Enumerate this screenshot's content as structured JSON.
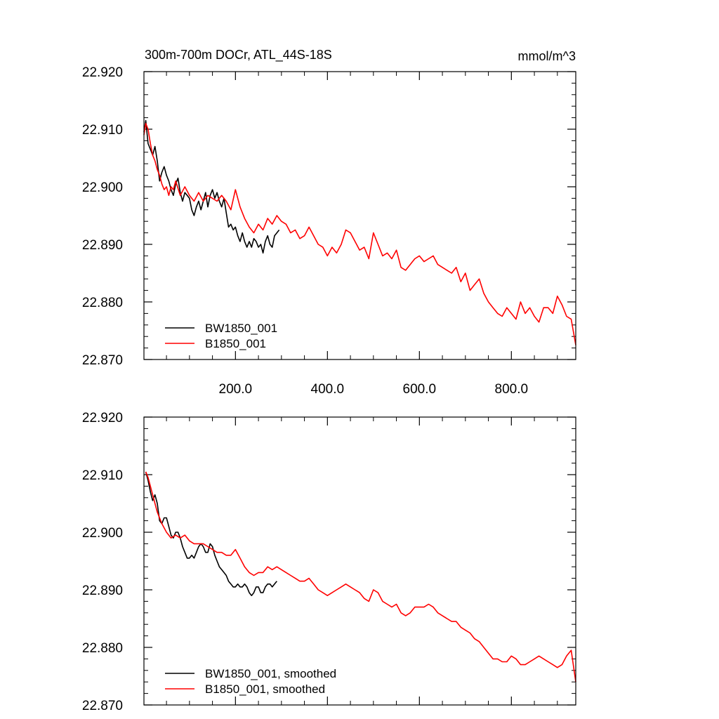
{
  "chart_data": [
    {
      "type": "line",
      "title": "300m-700m DOCr, ATL_44S-18S",
      "units": "mmol/m^3",
      "xlim": [
        1,
        940
      ],
      "ylim": [
        22.87,
        22.92
      ],
      "xticks": [
        200.0,
        400.0,
        600.0,
        800.0
      ],
      "xtick_labels": [
        "200.0",
        "400.0",
        "600.0",
        "800.0"
      ],
      "yticks": [
        22.87,
        22.88,
        22.89,
        22.9,
        22.91,
        22.92
      ],
      "ytick_labels": [
        "22.870",
        "22.880",
        "22.890",
        "22.900",
        "22.910",
        "22.920"
      ],
      "legend_position": "bottom-left",
      "series": [
        {
          "name": "BW1850_001",
          "color": "#000000",
          "x": [
            1,
            5,
            10,
            15,
            20,
            25,
            30,
            35,
            40,
            45,
            50,
            55,
            60,
            65,
            70,
            75,
            80,
            85,
            90,
            95,
            100,
            105,
            110,
            115,
            120,
            125,
            130,
            135,
            140,
            145,
            150,
            155,
            160,
            165,
            170,
            175,
            180,
            185,
            190,
            195,
            200,
            205,
            210,
            215,
            220,
            225,
            230,
            235,
            240,
            245,
            250,
            255,
            260,
            265,
            270,
            275,
            280,
            285,
            290,
            295
          ],
          "values": [
            22.9095,
            22.9115,
            22.9075,
            22.9065,
            22.9055,
            22.907,
            22.9045,
            22.901,
            22.9025,
            22.9035,
            22.902,
            22.901,
            22.8995,
            22.8985,
            22.9005,
            22.9015,
            22.899,
            22.8975,
            22.899,
            22.8985,
            22.898,
            22.896,
            22.895,
            22.8965,
            22.8975,
            22.896,
            22.8975,
            22.899,
            22.8965,
            22.8985,
            22.8995,
            22.898,
            22.899,
            22.8975,
            22.8965,
            22.898,
            22.8955,
            22.893,
            22.8935,
            22.8925,
            22.893,
            22.8915,
            22.8905,
            22.892,
            22.8905,
            22.8895,
            22.8905,
            22.8895,
            22.891,
            22.8905,
            22.8895,
            22.89,
            22.8885,
            22.8905,
            22.8915,
            22.89,
            22.8895,
            22.8915,
            22.892,
            22.8925
          ]
        },
        {
          "name": "B1850_001",
          "color": "#ff0000",
          "x": [
            1,
            5,
            10,
            15,
            20,
            25,
            30,
            35,
            40,
            45,
            50,
            55,
            60,
            65,
            70,
            80,
            90,
            100,
            110,
            120,
            130,
            140,
            150,
            160,
            170,
            180,
            190,
            200,
            210,
            220,
            230,
            240,
            250,
            260,
            270,
            280,
            290,
            300,
            310,
            320,
            330,
            340,
            350,
            360,
            370,
            380,
            390,
            400,
            410,
            420,
            430,
            440,
            450,
            460,
            470,
            480,
            490,
            500,
            510,
            520,
            530,
            540,
            550,
            560,
            570,
            580,
            590,
            600,
            610,
            620,
            630,
            640,
            650,
            660,
            670,
            680,
            690,
            700,
            710,
            720,
            730,
            740,
            750,
            760,
            770,
            780,
            790,
            800,
            810,
            820,
            830,
            840,
            850,
            860,
            870,
            880,
            890,
            900,
            910,
            920,
            930,
            940
          ],
          "values": [
            22.909,
            22.911,
            22.91,
            22.9075,
            22.9055,
            22.9045,
            22.903,
            22.902,
            22.9005,
            22.8995,
            22.9,
            22.8985,
            22.9,
            22.8995,
            22.901,
            22.8985,
            22.9,
            22.8985,
            22.8975,
            22.899,
            22.8975,
            22.8985,
            22.898,
            22.8975,
            22.8985,
            22.8975,
            22.896,
            22.8995,
            22.8965,
            22.8945,
            22.893,
            22.892,
            22.8935,
            22.8925,
            22.8945,
            22.8935,
            22.895,
            22.894,
            22.8935,
            22.892,
            22.8925,
            22.891,
            22.8915,
            22.893,
            22.8915,
            22.89,
            22.8895,
            22.888,
            22.8895,
            22.8885,
            22.89,
            22.8925,
            22.892,
            22.8905,
            22.889,
            22.8895,
            22.8875,
            22.892,
            22.89,
            22.888,
            22.8885,
            22.8875,
            22.889,
            22.886,
            22.8855,
            22.8865,
            22.8875,
            22.888,
            22.887,
            22.8875,
            22.888,
            22.8865,
            22.886,
            22.8855,
            22.885,
            22.886,
            22.8835,
            22.885,
            22.882,
            22.883,
            22.884,
            22.8815,
            22.88,
            22.879,
            22.878,
            22.8775,
            22.879,
            22.878,
            22.877,
            22.88,
            22.878,
            22.879,
            22.8775,
            22.8765,
            22.879,
            22.879,
            22.878,
            22.881,
            22.8795,
            22.8775,
            22.877,
            22.8725
          ]
        }
      ]
    },
    {
      "type": "line",
      "xlim": [
        1,
        940
      ],
      "ylim": [
        22.87,
        22.92
      ],
      "yticks": [
        22.87,
        22.88,
        22.89,
        22.9,
        22.91,
        22.92
      ],
      "ytick_labels": [
        "22.870",
        "22.880",
        "22.890",
        "22.900",
        "22.910",
        "22.920"
      ],
      "legend_position": "bottom-left",
      "series": [
        {
          "name": "BW1850_001, smoothed",
          "color": "#000000",
          "x": [
            5,
            10,
            15,
            20,
            25,
            30,
            35,
            40,
            45,
            50,
            55,
            60,
            65,
            70,
            75,
            80,
            85,
            90,
            95,
            100,
            105,
            110,
            115,
            120,
            125,
            130,
            135,
            140,
            145,
            150,
            155,
            160,
            165,
            170,
            175,
            180,
            185,
            190,
            195,
            200,
            205,
            210,
            215,
            220,
            225,
            230,
            235,
            240,
            245,
            250,
            255,
            260,
            265,
            270,
            275,
            280,
            285,
            290
          ],
          "values": [
            22.9105,
            22.909,
            22.907,
            22.9055,
            22.9065,
            22.905,
            22.902,
            22.9015,
            22.9025,
            22.9025,
            22.901,
            22.8995,
            22.899,
            22.9,
            22.9,
            22.899,
            22.8975,
            22.8965,
            22.8955,
            22.8955,
            22.896,
            22.8955,
            22.8965,
            22.8975,
            22.898,
            22.8975,
            22.8965,
            22.8965,
            22.898,
            22.8975,
            22.896,
            22.895,
            22.894,
            22.8935,
            22.893,
            22.8925,
            22.8915,
            22.891,
            22.8905,
            22.8905,
            22.891,
            22.8905,
            22.8905,
            22.891,
            22.8905,
            22.8895,
            22.889,
            22.8895,
            22.8905,
            22.8905,
            22.8895,
            22.8895,
            22.8905,
            22.891,
            22.891,
            22.8905,
            22.891,
            22.8915
          ]
        },
        {
          "name": "B1850_001, smoothed",
          "color": "#ff0000",
          "x": [
            5,
            10,
            15,
            20,
            25,
            30,
            40,
            50,
            60,
            70,
            80,
            90,
            100,
            110,
            120,
            130,
            140,
            150,
            160,
            170,
            180,
            190,
            200,
            210,
            220,
            230,
            240,
            250,
            260,
            270,
            280,
            290,
            300,
            310,
            320,
            330,
            340,
            350,
            360,
            370,
            380,
            390,
            400,
            410,
            420,
            430,
            440,
            450,
            460,
            470,
            480,
            490,
            500,
            510,
            520,
            530,
            540,
            550,
            560,
            570,
            580,
            590,
            600,
            610,
            620,
            630,
            640,
            650,
            660,
            670,
            680,
            690,
            700,
            710,
            720,
            730,
            740,
            750,
            760,
            770,
            780,
            790,
            800,
            810,
            820,
            830,
            840,
            850,
            860,
            870,
            880,
            890,
            900,
            910,
            920,
            930,
            940
          ],
          "values": [
            22.9105,
            22.9095,
            22.908,
            22.9065,
            22.905,
            22.9035,
            22.9015,
            22.9,
            22.899,
            22.8995,
            22.899,
            22.8995,
            22.8985,
            22.898,
            22.898,
            22.898,
            22.8975,
            22.897,
            22.8965,
            22.8965,
            22.896,
            22.896,
            22.897,
            22.8955,
            22.894,
            22.893,
            22.8925,
            22.893,
            22.893,
            22.894,
            22.8935,
            22.894,
            22.8935,
            22.893,
            22.8925,
            22.892,
            22.8915,
            22.8915,
            22.892,
            22.891,
            22.89,
            22.8895,
            22.889,
            22.8895,
            22.89,
            22.8905,
            22.891,
            22.8905,
            22.89,
            22.8895,
            22.8885,
            22.888,
            22.89,
            22.8895,
            22.888,
            22.8875,
            22.887,
            22.8875,
            22.886,
            22.8855,
            22.886,
            22.887,
            22.887,
            22.887,
            22.8875,
            22.887,
            22.886,
            22.8855,
            22.885,
            22.8845,
            22.8845,
            22.8835,
            22.883,
            22.8825,
            22.8815,
            22.881,
            22.88,
            22.879,
            22.878,
            22.878,
            22.8775,
            22.8775,
            22.8785,
            22.878,
            22.877,
            22.877,
            22.8775,
            22.878,
            22.8785,
            22.878,
            22.8775,
            22.877,
            22.8765,
            22.877,
            22.8785,
            22.8795,
            22.874
          ]
        }
      ]
    }
  ]
}
